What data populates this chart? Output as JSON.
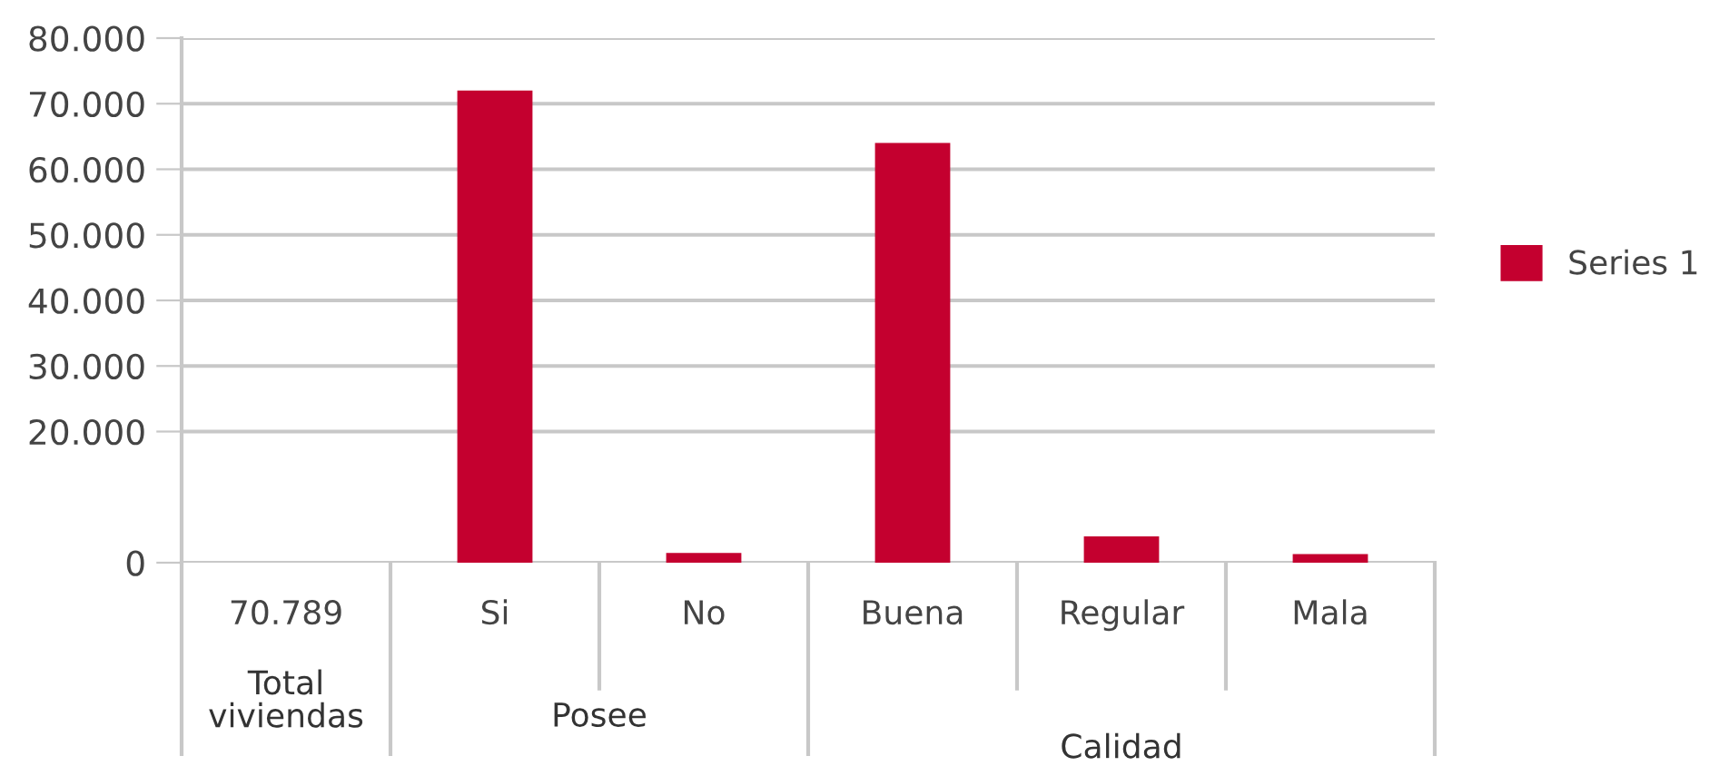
{
  "chart_data": {
    "type": "bar",
    "categories": [
      "70.789",
      "Si",
      "No",
      "Buena",
      "Regular",
      "Mala"
    ],
    "annotations": [
      "Total viviendas",
      "Posee",
      "Calidad"
    ],
    "series": [
      {
        "name": "Series 1",
        "color": "#c4002f",
        "values": [
          null,
          72000,
          1500,
          64000,
          4000,
          1300
        ]
      }
    ],
    "ylim": [
      0,
      80000
    ],
    "yticks": [
      {
        "value": 0,
        "label": "0"
      },
      {
        "value": 20000,
        "label": "20.000"
      },
      {
        "value": 30000,
        "label": "30.000"
      },
      {
        "value": 40000,
        "label": "40.000"
      },
      {
        "value": 50000,
        "label": "50.000"
      },
      {
        "value": 60000,
        "label": "60.000"
      },
      {
        "value": 70000,
        "label": "70.000"
      },
      {
        "value": 80000,
        "label": "80.000"
      }
    ],
    "grid": "y",
    "legend": "right"
  }
}
